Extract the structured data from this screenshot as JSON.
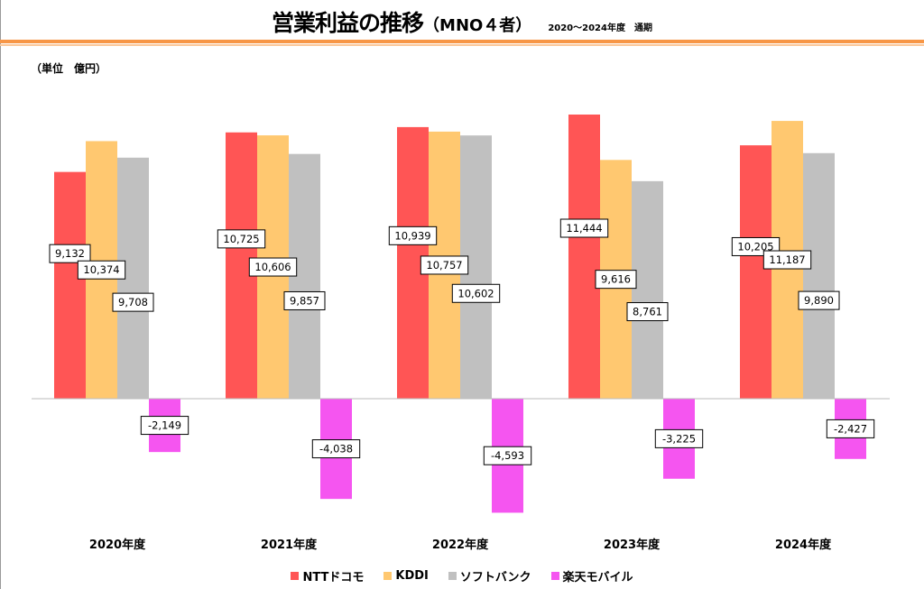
{
  "header": {
    "title": "営業利益の推移",
    "title_paren": "（MNO４者）",
    "subtitle": "2020～2024年度　通期",
    "unit": "（単位　億円）"
  },
  "chart_data": {
    "type": "bar",
    "title": "営業利益の推移（MNO４者）",
    "xlabel": "",
    "ylabel": "億円",
    "categories": [
      "2020年度",
      "2021年度",
      "2022年度",
      "2023年度",
      "2024年度"
    ],
    "series": [
      {
        "name": "NTTドコモ",
        "color": "#ff5555",
        "values": [
          9132,
          10725,
          10939,
          11444,
          10205
        ],
        "labels": [
          "9,132",
          "10,725",
          "10,939",
          "11,444",
          "10,205"
        ]
      },
      {
        "name": "KDDI",
        "color": "#ffc870",
        "values": [
          10374,
          10606,
          10757,
          9616,
          11187
        ],
        "labels": [
          "10,374",
          "10,606",
          "10,757",
          "9,616",
          "11,187"
        ]
      },
      {
        "name": "ソフトバンク",
        "color": "#c0c0c0",
        "values": [
          9708,
          9857,
          10602,
          8761,
          9890
        ],
        "labels": [
          "9,708",
          "9,857",
          "10,602",
          "8,761",
          "9,890"
        ]
      },
      {
        "name": "楽天モバイル",
        "color": "#f555f0",
        "values": [
          -2149,
          -4038,
          -4593,
          -3225,
          -2427
        ],
        "labels": [
          "-2,149",
          "-4,038",
          "-4,593",
          "-3,225",
          "-2,427"
        ]
      }
    ],
    "ylim": [
      -4800,
      11500
    ],
    "legend": "bottom",
    "grid": false
  }
}
